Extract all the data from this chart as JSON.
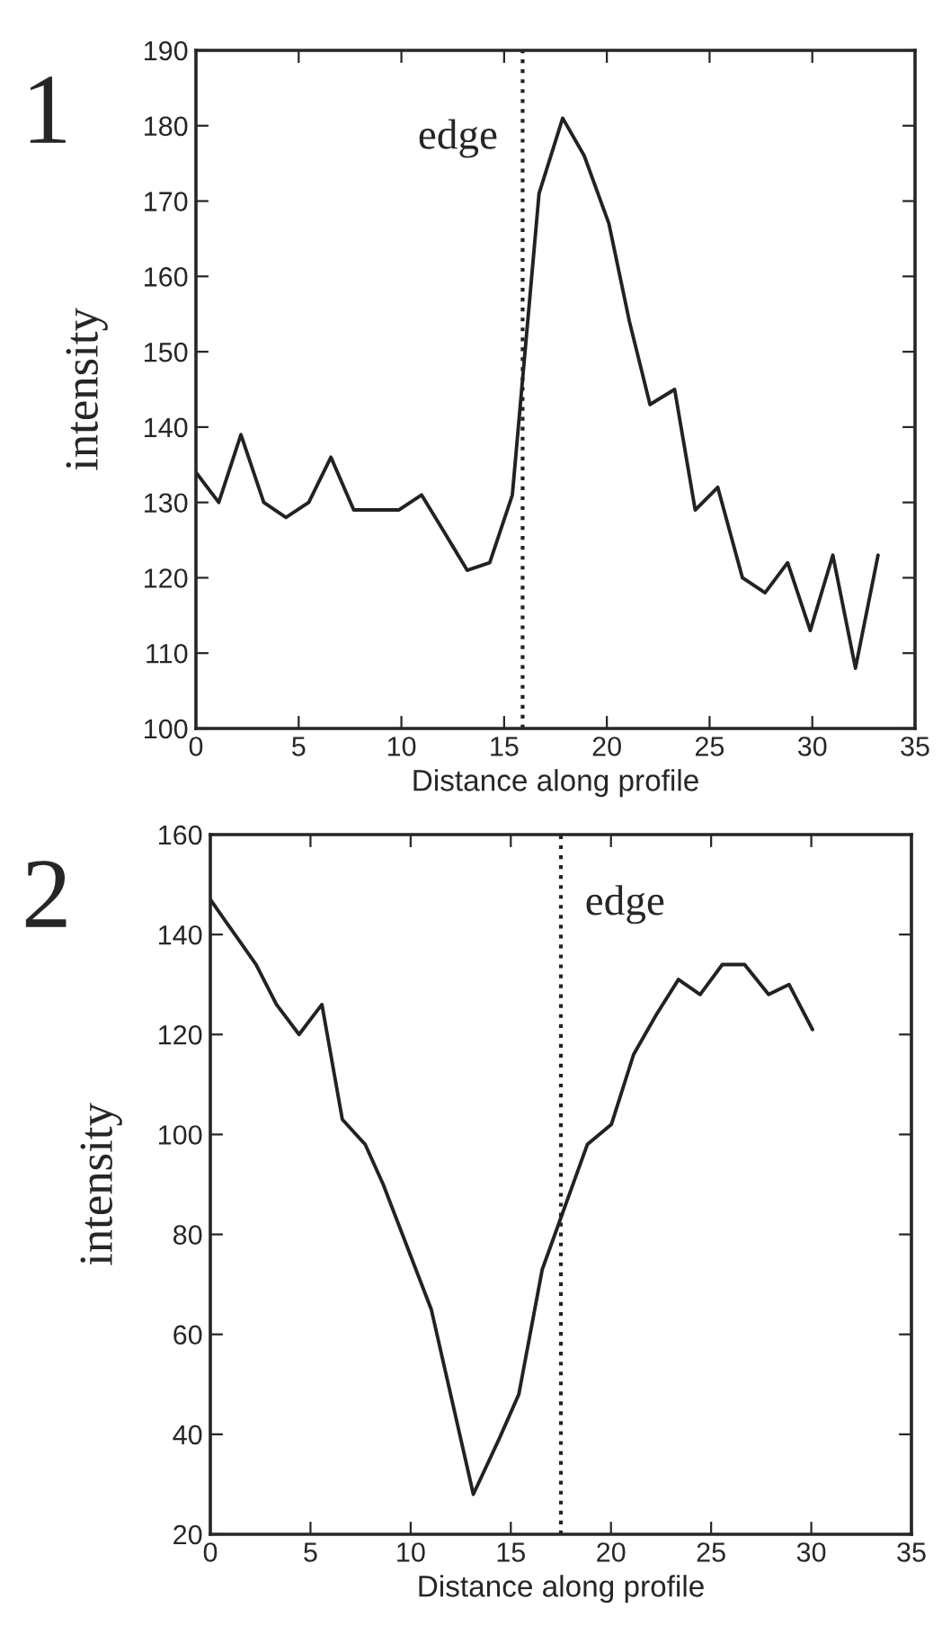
{
  "chart_data": [
    {
      "type": "line",
      "annotations": [
        "1"
      ],
      "xlabel": "Distance along profile",
      "ylabel": "intensity",
      "series": [
        {
          "color": "#222222",
          "x": [
            0,
            1.11,
            2.19,
            3.3,
            4.38,
            5.49,
            6.57,
            7.68,
            8.79,
            9.87,
            10.98,
            12.1,
            13.2,
            14.3,
            15.4,
            16.7,
            17.85,
            18.9,
            20.1,
            21.1,
            22.1,
            23.3,
            24.3,
            25.4,
            26.6,
            27.7,
            28.8,
            29.9,
            31.0,
            32.1,
            33.2
          ],
          "values": [
            134,
            130,
            139,
            130,
            128,
            130,
            136,
            129,
            129,
            129,
            131,
            126,
            121,
            122,
            131,
            171,
            181,
            176,
            167,
            154,
            143,
            145,
            129,
            132,
            120,
            118,
            122,
            113,
            123,
            108,
            123
          ]
        }
      ],
      "ref_lines": [
        {
          "axis": "x",
          "value": 15.9,
          "label": "edge",
          "line_style": "dotted",
          "color": "#222222"
        }
      ],
      "xlim": [
        0,
        35
      ],
      "xticks": [
        0,
        5,
        10,
        15,
        20,
        25,
        30,
        35
      ],
      "ylim": [
        100,
        190
      ],
      "yticks": [
        100,
        110,
        120,
        130,
        140,
        150,
        160,
        170,
        180,
        190
      ],
      "grid": false,
      "line_style": "solid",
      "marker": "none"
    },
    {
      "type": "line",
      "annotations": [
        "2"
      ],
      "xlabel": "Distance along profile",
      "ylabel": "intensity",
      "series": [
        {
          "color": "#222222",
          "x": [
            0,
            2.28,
            3.3,
            4.43,
            5.57,
            6.59,
            7.73,
            8.63,
            11.03,
            13.13,
            14.41,
            15.4,
            16.57,
            18.82,
            20.02,
            21.13,
            22.27,
            23.37,
            24.45,
            25.56,
            26.67,
            27.87,
            28.89,
            30.06
          ],
          "values": [
            147,
            134,
            126,
            120,
            126,
            103,
            98,
            90,
            65,
            28,
            39,
            48,
            73,
            98,
            102,
            116,
            124,
            131,
            128,
            134,
            134,
            128,
            130,
            121
          ]
        }
      ],
      "ref_lines": [
        {
          "axis": "x",
          "value": 17.5,
          "label": "edge",
          "line_style": "dotted",
          "color": "#222222"
        }
      ],
      "xlim": [
        0,
        35
      ],
      "xticks": [
        0,
        5,
        10,
        15,
        20,
        25,
        30,
        35
      ],
      "ylim": [
        20,
        160
      ],
      "yticks": [
        20,
        40,
        60,
        80,
        100,
        120,
        140,
        160
      ],
      "grid": false,
      "line_style": "solid",
      "marker": "none"
    }
  ]
}
